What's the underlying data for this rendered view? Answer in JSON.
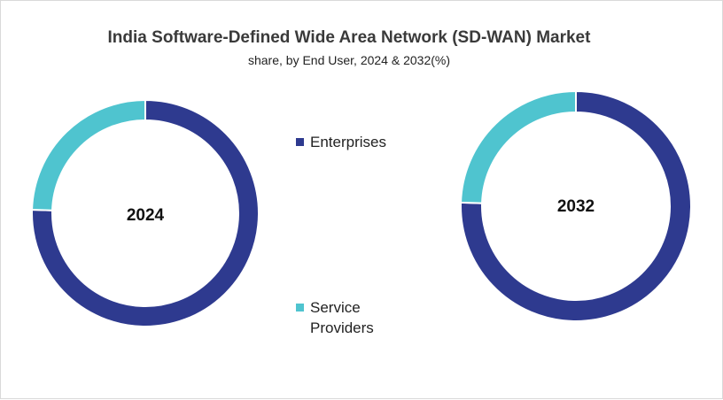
{
  "chart_data": [
    {
      "type": "pie",
      "donut": true,
      "title": "India Software-Defined Wide Area Network (SD-WAN) Market",
      "subtitle": "share, by End User, 2024 & 2032(%)",
      "center_label": "2024",
      "categories": [
        "Enterprises",
        "Service Providers"
      ],
      "values": [
        75.5,
        24.5
      ],
      "colors": [
        "#2e3a8f",
        "#4fc4cf"
      ]
    },
    {
      "type": "pie",
      "donut": true,
      "center_label": "2032",
      "categories": [
        "Enterprises",
        "Service Providers"
      ],
      "values": [
        75.5,
        24.5
      ],
      "colors": [
        "#2e3a8f",
        "#4fc4cf"
      ]
    }
  ],
  "legend": {
    "items": [
      {
        "label": "Enterprises",
        "color": "#2e3a8f"
      },
      {
        "label": "Service Providers",
        "color": "#4fc4cf"
      }
    ],
    "placement": "center"
  }
}
